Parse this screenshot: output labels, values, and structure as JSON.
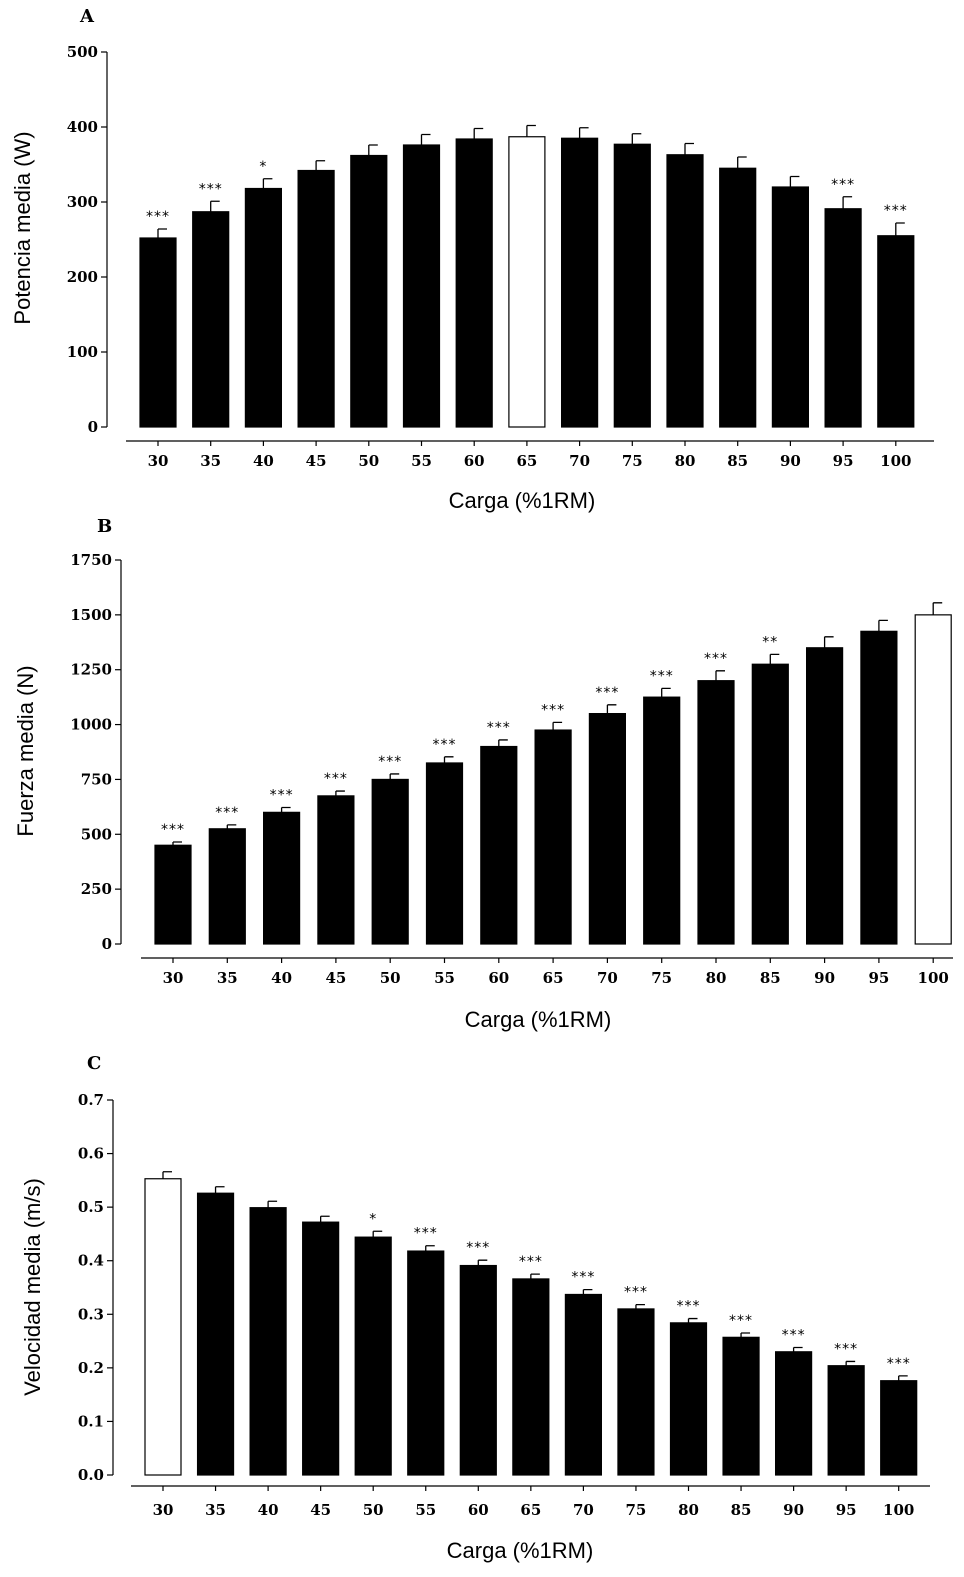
{
  "chart_data": [
    {
      "panel": "A",
      "type": "bar",
      "xlabel": "Carga (%1RM)",
      "ylabel": "Potencia media (W)",
      "ylim": [
        0,
        500
      ],
      "yticks": [
        "0",
        "100",
        "200",
        "300",
        "400",
        "500"
      ],
      "categories": [
        "30",
        "35",
        "40",
        "45",
        "50",
        "55",
        "60",
        "65",
        "70",
        "75",
        "80",
        "85",
        "90",
        "95",
        "100"
      ],
      "values": [
        252,
        287,
        318,
        342,
        362,
        376,
        384,
        387,
        385,
        377,
        363,
        345,
        320,
        291,
        255
      ],
      "errors": [
        12,
        14,
        13,
        13,
        14,
        14,
        14,
        15,
        14,
        14,
        15,
        15,
        14,
        16,
        17
      ],
      "significance": [
        "***",
        "***",
        "*",
        "",
        "",
        "",
        "",
        "",
        "",
        "",
        "",
        "",
        "",
        "***",
        "***"
      ],
      "reference_index": 7,
      "colors": {
        "bar": "#000000",
        "reference": "#ffffff"
      }
    },
    {
      "panel": "B",
      "type": "bar",
      "xlabel": "Carga (%1RM)",
      "ylabel": "Fuerza media (N)",
      "ylim": [
        0,
        1750
      ],
      "yticks": [
        "0",
        "250",
        "500",
        "750",
        "1000",
        "1250",
        "1500",
        "1750"
      ],
      "categories": [
        "30",
        "35",
        "40",
        "45",
        "50",
        "55",
        "60",
        "65",
        "70",
        "75",
        "80",
        "85",
        "90",
        "95",
        "100"
      ],
      "values": [
        450,
        525,
        600,
        675,
        750,
        825,
        900,
        975,
        1050,
        1125,
        1200,
        1275,
        1350,
        1425,
        1500
      ],
      "errors": [
        15,
        18,
        22,
        22,
        25,
        28,
        30,
        35,
        40,
        40,
        45,
        45,
        50,
        50,
        55
      ],
      "significance": [
        "***",
        "***",
        "***",
        "***",
        "***",
        "***",
        "***",
        "***",
        "***",
        "***",
        "***",
        "**",
        "",
        "",
        ""
      ],
      "reference_index": 14,
      "colors": {
        "bar": "#000000",
        "reference": "#ffffff"
      }
    },
    {
      "panel": "C",
      "type": "bar",
      "xlabel": "Carga (%1RM)",
      "ylabel": "Velocidad media (m/s)",
      "ylim": [
        0,
        0.7
      ],
      "yticks": [
        "0.0",
        "0.1",
        "0.2",
        "0.3",
        "0.4",
        "0.5",
        "0.6",
        "0.7"
      ],
      "categories": [
        "30",
        "35",
        "40",
        "45",
        "50",
        "55",
        "60",
        "65",
        "70",
        "75",
        "80",
        "85",
        "90",
        "95",
        "100"
      ],
      "values": [
        0.553,
        0.526,
        0.499,
        0.472,
        0.444,
        0.418,
        0.391,
        0.366,
        0.337,
        0.31,
        0.284,
        0.257,
        0.23,
        0.204,
        0.176
      ],
      "errors": [
        0.013,
        0.012,
        0.012,
        0.011,
        0.011,
        0.01,
        0.01,
        0.009,
        0.009,
        0.008,
        0.008,
        0.008,
        0.008,
        0.008,
        0.009
      ],
      "significance": [
        "",
        "",
        "",
        "",
        "*",
        "***",
        "***",
        "***",
        "***",
        "***",
        "***",
        "***",
        "***",
        "***",
        "***"
      ],
      "reference_index": 0,
      "colors": {
        "bar": "#000000",
        "reference": "#ffffff"
      }
    }
  ]
}
